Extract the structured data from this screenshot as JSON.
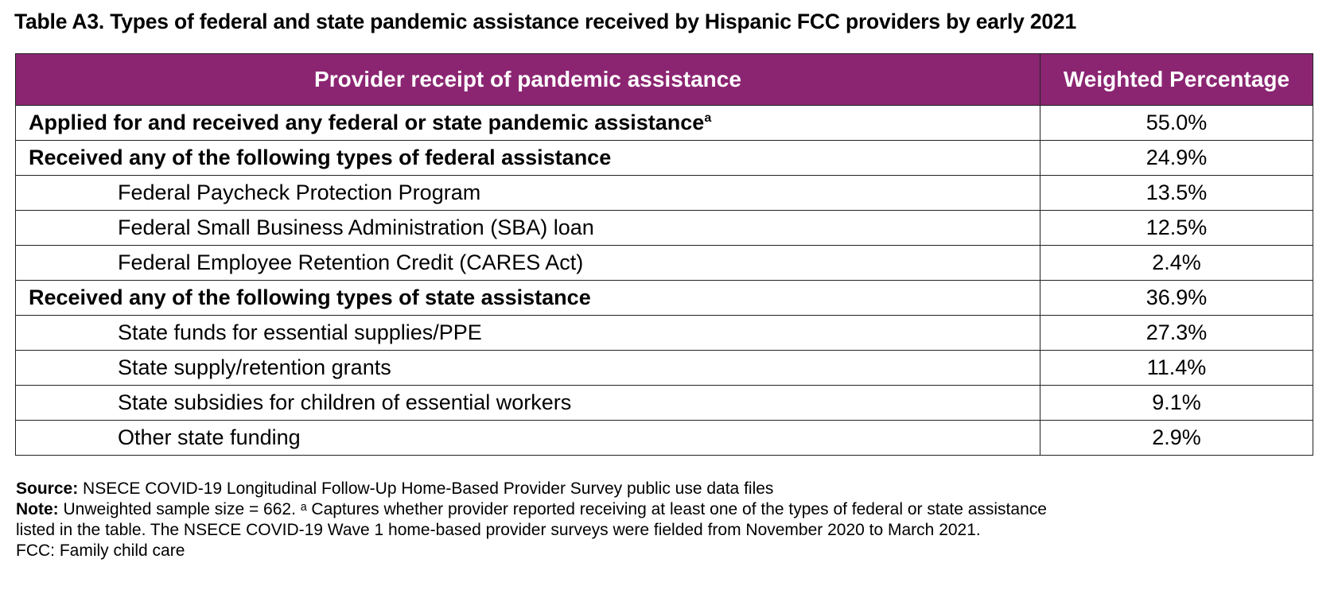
{
  "title": "Table A3. Types of federal and state pandemic assistance received by Hispanic FCC providers by early 2021",
  "table": {
    "headers": [
      "Provider receipt of pandemic assistance",
      "Weighted Percentage"
    ],
    "rows": [
      {
        "label": "Applied for and received any federal or state pandemic assistance",
        "sup": "a",
        "value": "55.0%",
        "style": "bold"
      },
      {
        "label": "Received any of the following types of federal assistance",
        "value": "24.9%",
        "style": "bold"
      },
      {
        "label": "Federal Paycheck Protection Program",
        "value": "13.5%",
        "style": "sub"
      },
      {
        "label": "Federal Small Business Administration (SBA) loan",
        "value": "12.5%",
        "style": "sub"
      },
      {
        "label": "Federal Employee Retention Credit (CARES Act)",
        "value": "2.4%",
        "style": "sub"
      },
      {
        "label": "Received any of the following types of state assistance",
        "value": "36.9%",
        "style": "bold"
      },
      {
        "label": "State funds for essential supplies/PPE",
        "value": "27.3%",
        "style": "sub"
      },
      {
        "label": "State supply/retention grants",
        "value": "11.4%",
        "style": "sub"
      },
      {
        "label": "State subsidies for children of essential workers",
        "value": "9.1%",
        "style": "sub"
      },
      {
        "label": "Other state funding",
        "value": "2.9%",
        "style": "sub"
      }
    ]
  },
  "footer": {
    "source_label": "Source:",
    "source_text": " NSECE COVID-19 Longitudinal Follow-Up Home-Based Provider Survey public use data files",
    "note_label": "Note:",
    "note_line1": " Unweighted sample size = 662.  ᵃ Captures whether provider reported receiving at least one of the types of federal or state assistance",
    "note_line2": "listed in the table. The NSECE COVID-19 Wave 1 home-based provider surveys were fielded from November 2020 to March 2021.",
    "fcc": "FCC: Family child care"
  },
  "colors": {
    "header_bg": "#8b2572"
  }
}
